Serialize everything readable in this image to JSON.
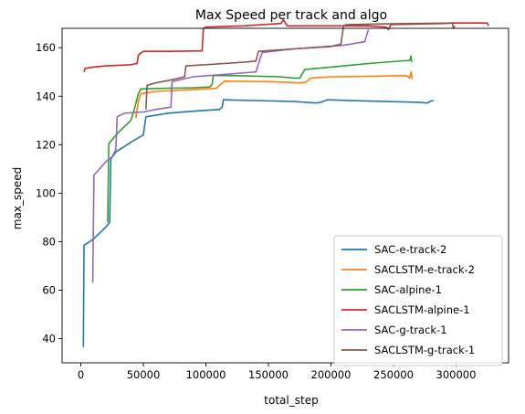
{
  "chart_data": {
    "type": "line",
    "title": "Max Speed per track and algo",
    "xlabel": "total_step",
    "ylabel": "max_speed",
    "xlim": [
      -15000,
      342000
    ],
    "ylim": [
      30,
      168
    ],
    "xticks": [
      0,
      50000,
      100000,
      150000,
      200000,
      250000,
      300000
    ],
    "yticks": [
      40,
      60,
      80,
      100,
      120,
      140,
      160
    ],
    "legend_position": "lower-right",
    "grid": false,
    "series": [
      {
        "name": "SAC-e-track-2",
        "color": "#1f77b4",
        "points": [
          [
            2000,
            36.5
          ],
          [
            2500,
            78.5
          ],
          [
            10000,
            81
          ],
          [
            20000,
            86
          ],
          [
            23000,
            88
          ],
          [
            24000,
            114
          ],
          [
            28000,
            117
          ],
          [
            40000,
            121
          ],
          [
            50000,
            124
          ],
          [
            52000,
            131.5
          ],
          [
            70000,
            133
          ],
          [
            95000,
            134
          ],
          [
            111000,
            134.5
          ],
          [
            113000,
            135.5
          ],
          [
            114000,
            138.5
          ],
          [
            140000,
            138.2
          ],
          [
            170000,
            137.8
          ],
          [
            188000,
            137.2
          ],
          [
            192000,
            137.5
          ],
          [
            197000,
            138.5
          ],
          [
            230000,
            138
          ],
          [
            270000,
            137.5
          ],
          [
            277000,
            137.2
          ],
          [
            280000,
            138
          ],
          [
            282000,
            138.2
          ]
        ]
      },
      {
        "name": "SACLSTM-e-track-2",
        "color": "#ff7f0e",
        "points": [
          [
            44000,
            131
          ],
          [
            46000,
            138
          ],
          [
            48000,
            141
          ],
          [
            60000,
            142
          ],
          [
            80000,
            142.5
          ],
          [
            100000,
            143
          ],
          [
            108000,
            143.2
          ],
          [
            112000,
            145
          ],
          [
            115000,
            146.2
          ],
          [
            150000,
            146
          ],
          [
            175000,
            145.5
          ],
          [
            180000,
            145.8
          ],
          [
            184000,
            147.5
          ],
          [
            200000,
            148
          ],
          [
            230000,
            148.2
          ],
          [
            260000,
            148.5
          ],
          [
            263000,
            147.5
          ],
          [
            264000,
            150
          ],
          [
            265000,
            147
          ]
        ]
      },
      {
        "name": "SAC-alpine-1",
        "color": "#2ca02c",
        "points": [
          [
            21500,
            88
          ],
          [
            22000,
            108
          ],
          [
            22300,
            120.5
          ],
          [
            30000,
            125
          ],
          [
            40000,
            130
          ],
          [
            43000,
            135
          ],
          [
            46000,
            141
          ],
          [
            48000,
            143
          ],
          [
            70000,
            143.3
          ],
          [
            90000,
            143.5
          ],
          [
            103000,
            143.8
          ],
          [
            105000,
            145
          ],
          [
            106000,
            148.5
          ],
          [
            120000,
            148.5
          ],
          [
            160000,
            148
          ],
          [
            170000,
            147.5
          ],
          [
            175000,
            147.5
          ],
          [
            178000,
            150
          ],
          [
            179000,
            151
          ],
          [
            200000,
            152
          ],
          [
            230000,
            153.5
          ],
          [
            263000,
            154.8
          ],
          [
            264000,
            156.5
          ],
          [
            264500,
            154
          ]
        ]
      },
      {
        "name": "SACLSTM-alpine-1",
        "color": "#d62728",
        "points": [
          [
            2500,
            150
          ],
          [
            3500,
            151.5
          ],
          [
            10000,
            152
          ],
          [
            20000,
            152.5
          ],
          [
            40000,
            153
          ],
          [
            45000,
            153.5
          ],
          [
            46000,
            157
          ],
          [
            50000,
            158.5
          ],
          [
            70000,
            158.5
          ],
          [
            97000,
            158.7
          ],
          [
            98000,
            168
          ],
          [
            100000,
            168.5
          ],
          [
            130000,
            169
          ],
          [
            160000,
            170
          ],
          [
            162000,
            171.5
          ],
          [
            165000,
            169
          ],
          [
            200000,
            169
          ],
          [
            230000,
            169
          ],
          [
            244000,
            168.5
          ],
          [
            246000,
            167.5
          ],
          [
            248000,
            169.5
          ],
          [
            290000,
            170
          ],
          [
            297000,
            170.2
          ],
          [
            300000,
            170.2
          ],
          [
            325000,
            170.2
          ],
          [
            326000,
            169
          ]
        ]
      },
      {
        "name": "SAC-g-track-1",
        "color": "#9467bd",
        "points": [
          [
            9500,
            63
          ],
          [
            10500,
            107.5
          ],
          [
            15000,
            110
          ],
          [
            20000,
            113
          ],
          [
            25000,
            115
          ],
          [
            28000,
            118
          ],
          [
            29000,
            131.5
          ],
          [
            35000,
            133
          ],
          [
            50000,
            133.5
          ],
          [
            60000,
            134.5
          ],
          [
            72000,
            135.5
          ],
          [
            73000,
            146
          ],
          [
            90000,
            148
          ],
          [
            110000,
            148.8
          ],
          [
            140000,
            150
          ],
          [
            143000,
            155
          ],
          [
            145000,
            158
          ],
          [
            170000,
            159.5
          ],
          [
            210000,
            161
          ],
          [
            227000,
            162.5
          ],
          [
            230000,
            167.5
          ]
        ]
      },
      {
        "name": "SACLSTM-g-track-1",
        "color": "#8c564b",
        "points": [
          [
            52000,
            134.5
          ],
          [
            53000,
            144.5
          ],
          [
            60000,
            145.5
          ],
          [
            75000,
            147
          ],
          [
            83000,
            148
          ],
          [
            84000,
            152.5
          ],
          [
            100000,
            153
          ],
          [
            130000,
            154
          ],
          [
            140000,
            154.5
          ],
          [
            142000,
            158.5
          ],
          [
            170000,
            159.5
          ],
          [
            200000,
            160.5
          ],
          [
            208000,
            161.5
          ],
          [
            210000,
            169
          ],
          [
            212000,
            169.5
          ],
          [
            240000,
            169.8
          ],
          [
            270000,
            170
          ],
          [
            297000,
            170.2
          ],
          [
            298000,
            168
          ],
          [
            299000,
            169
          ]
        ]
      }
    ]
  }
}
